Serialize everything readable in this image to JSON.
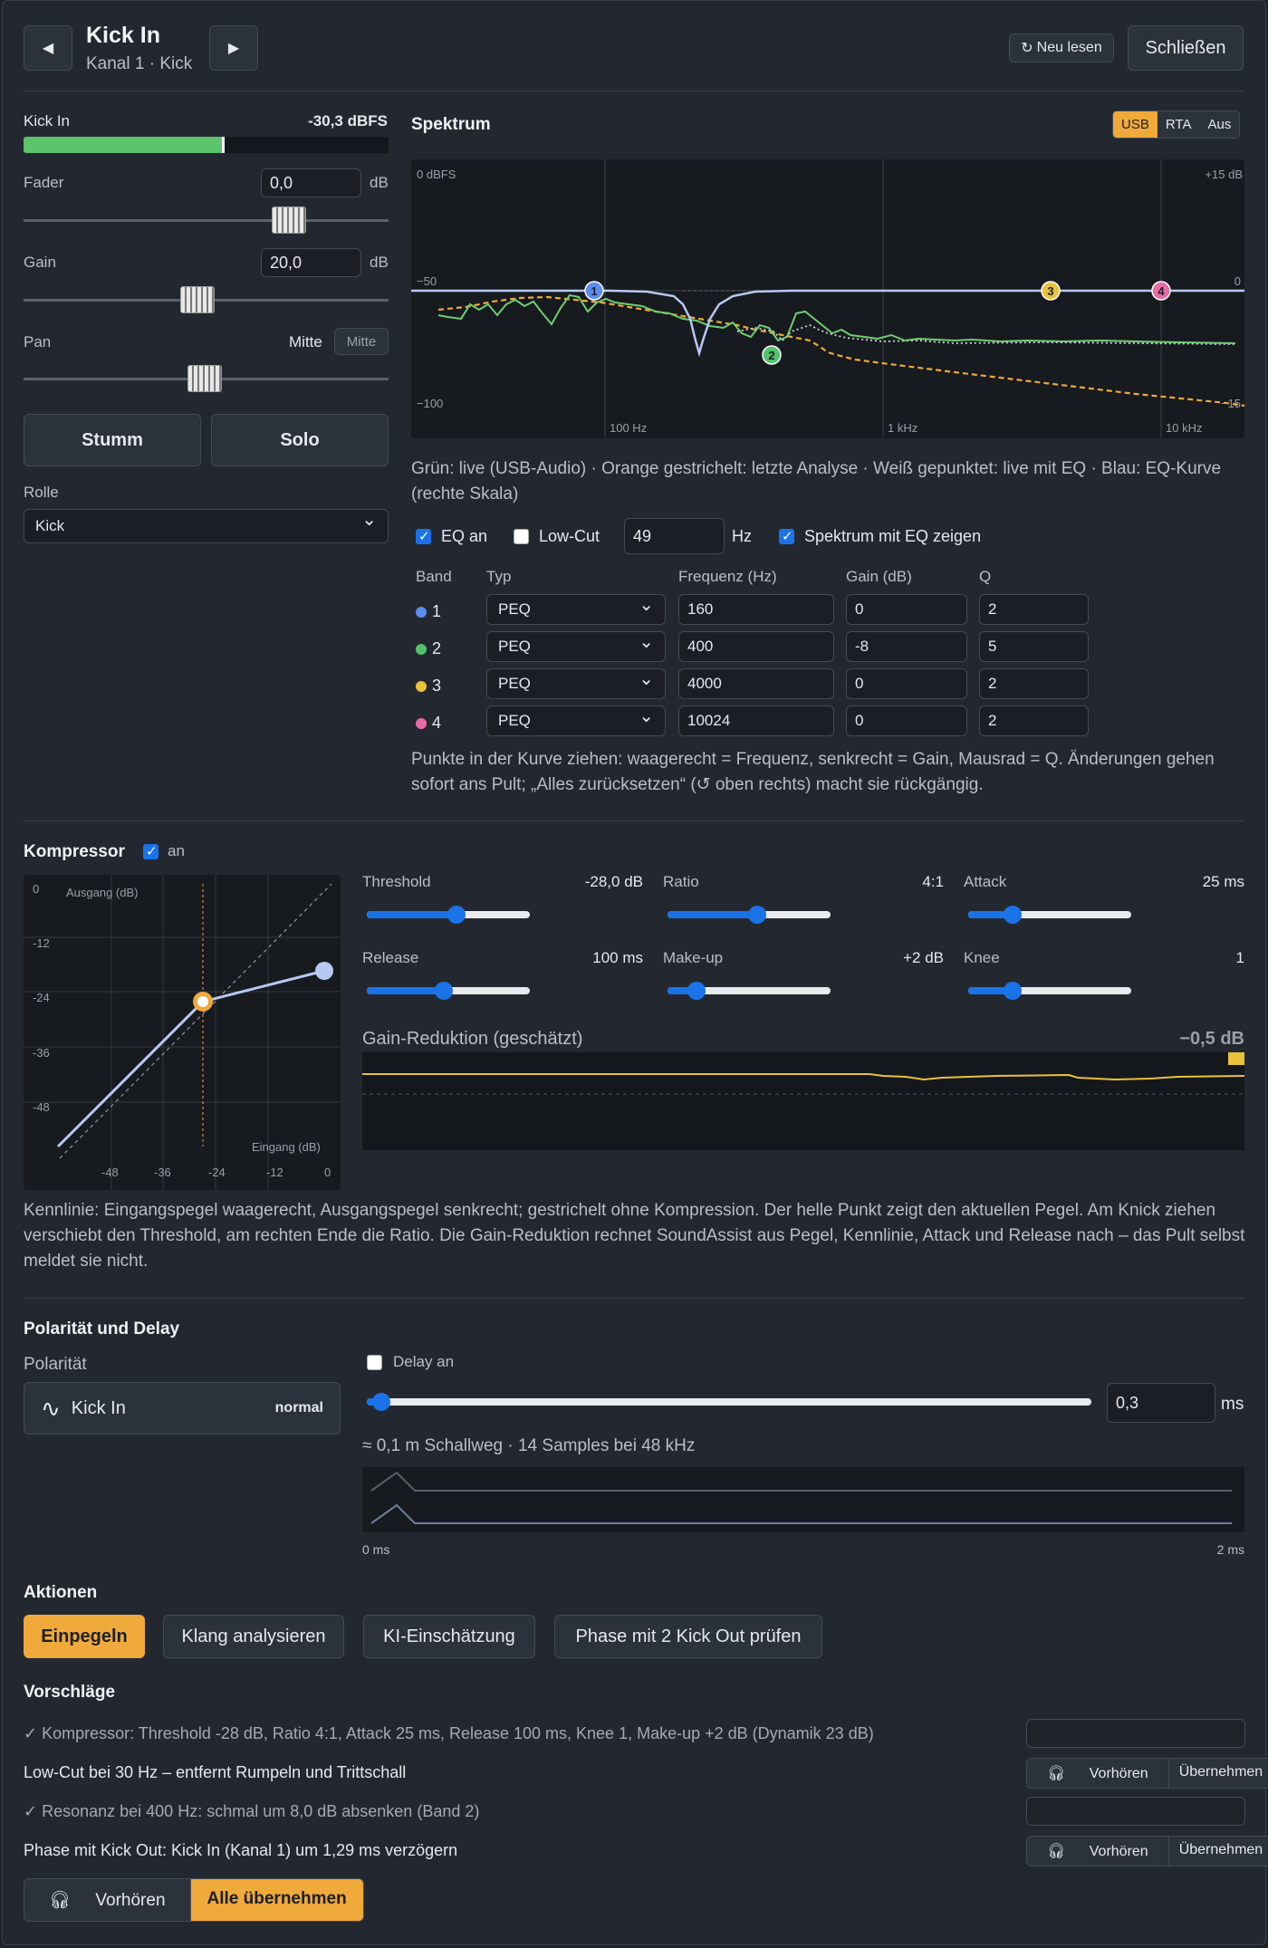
{
  "header": {
    "title": "Kick In",
    "subtitle": "Kanal 1 · Kick",
    "reload": "Neu lesen",
    "close": "Schließen"
  },
  "meter": {
    "label": "Kick In",
    "value": "-30,3 dBFS",
    "level": 0.55
  },
  "fader": {
    "label": "Fader",
    "value": "0,0",
    "unit": "dB"
  },
  "gain": {
    "label": "Gain",
    "value": "20,0",
    "unit": "dB"
  },
  "pan": {
    "label": "Pan",
    "value": "Mitte",
    "button": "Mitte"
  },
  "mute": "Stumm",
  "solo": "Solo",
  "role": {
    "label": "Rolle",
    "value": "Kick"
  },
  "spectrum": {
    "title": "Spektrum",
    "modes": [
      "USB",
      "RTA",
      "Aus"
    ],
    "active": "USB",
    "axis": {
      "top_left": "0 dBFS",
      "top_right": "+15 dB",
      "mid_left": "−50",
      "mid_right": "0",
      "bottom_left": "−100",
      "bottom_right": "−15",
      "x": [
        "100 Hz",
        "1 kHz",
        "10 kHz"
      ]
    },
    "legend": "Grün: live (USB-Audio) · Orange gestrichelt: letzte Analyse · Weiß gepunktet: live mit EQ · Blau: EQ-Kurve (rechte Skala)"
  },
  "eq": {
    "eq_on": "EQ an",
    "lowcut": "Low-Cut",
    "lowcut_value": "49",
    "lowcut_unit": "Hz",
    "show_with_eq": "Spektrum mit EQ zeigen",
    "headers": [
      "Band",
      "Typ",
      "Frequenz (Hz)",
      "Gain (dB)",
      "Q"
    ],
    "bands": [
      {
        "n": "1",
        "color": "#5b8def",
        "type": "PEQ",
        "freq": "160",
        "gain": "0",
        "q": "2"
      },
      {
        "n": "2",
        "color": "#52c26b",
        "type": "PEQ",
        "freq": "400",
        "gain": "-8",
        "q": "5"
      },
      {
        "n": "3",
        "color": "#e9c23c",
        "type": "PEQ",
        "freq": "4000",
        "gain": "0",
        "q": "2"
      },
      {
        "n": "4",
        "color": "#e86aa6",
        "type": "PEQ",
        "freq": "10024",
        "gain": "0",
        "q": "2"
      }
    ],
    "hint": "Punkte in der Kurve ziehen: waagerecht = Frequenz, senkrecht = Gain, Mausrad = Q. Änderungen gehen sofort ans Pult; „Alles zurücksetzen“ (↺ oben rechts) macht sie rückgängig."
  },
  "comp": {
    "title": "Kompressor",
    "on": "an",
    "graph": {
      "ylabel": "Ausgang (dB)",
      "xlabel": "Eingang (dB)",
      "yticks": [
        "0",
        "-12",
        "-24",
        "-36",
        "-48"
      ],
      "xticks": [
        "-48",
        "-36",
        "-24",
        "-12",
        "0"
      ]
    },
    "threshold": {
      "label": "Threshold",
      "value": "-28,0 dB",
      "pos": 0.55
    },
    "ratio": {
      "label": "Ratio",
      "value": "4:1",
      "pos": 0.55
    },
    "attack": {
      "label": "Attack",
      "value": "25 ms",
      "pos": 0.27
    },
    "release": {
      "label": "Release",
      "value": "100 ms",
      "pos": 0.47
    },
    "makeup": {
      "label": "Make-up",
      "value": "+2 dB",
      "pos": 0.18
    },
    "knee": {
      "label": "Knee",
      "value": "1",
      "pos": 0.27
    },
    "gr": {
      "label": "Gain-Reduktion (geschätzt)",
      "value": "−0,5 dB"
    },
    "text": "Kennlinie: Eingangspegel waagerecht, Ausgangspegel senkrecht; gestrichelt ohne Kompression. Der helle Punkt zeigt den aktuellen Pegel. Am Knick ziehen verschiebt den Threshold, am rechten Ende die Ratio. Die Gain-Reduktion rechnet SoundAssist aus Pegel, Kennlinie, Attack und Release nach – das Pult selbst meldet sie nicht."
  },
  "poldelay": {
    "title": "Polarität und Delay",
    "pol_label": "Polarität",
    "channel": "Kick In",
    "pol_state": "normal",
    "delay_on": "Delay an",
    "delay_value": "0,3",
    "delay_unit": "ms",
    "delay_pos": 0.02,
    "info": "≈ 0,1 m Schallweg · 14 Samples bei 48 kHz",
    "x0": "0 ms",
    "x1": "2 ms"
  },
  "actions": {
    "title": "Aktionen",
    "buttons": [
      "Einpegeln",
      "Klang analysieren",
      "KI-Einschätzung",
      "Phase mit 2 Kick Out prüfen"
    ]
  },
  "suggestions": {
    "title": "Vorschläge",
    "items": [
      {
        "text": "✓ Kompressor: Threshold -28 dB, Ratio 4:1, Attack 25 ms, Release 100 ms, Knee 1, Make-up +2 dB (Dynamik 23 dB)",
        "done": true
      },
      {
        "text": "Low-Cut bei 30 Hz – entfernt Rumpeln und Trittschall",
        "done": false
      },
      {
        "text": "✓ Resonanz bei 400 Hz: schmal um 8,0 dB absenken (Band 2)",
        "done": true
      },
      {
        "text": "Phase mit Kick Out: Kick In (Kanal 1) um 1,29 ms verzögern",
        "done": false
      }
    ],
    "preview": "Vorhören",
    "apply": "Übernehmen",
    "preview_all": "Vorhören",
    "apply_all": "Alle übernehmen"
  }
}
